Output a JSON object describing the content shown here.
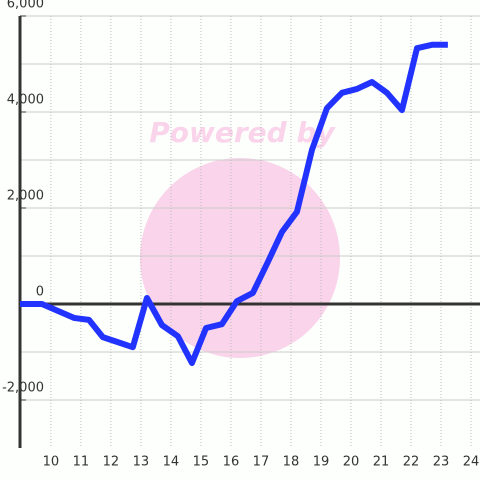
{
  "chart_data": {
    "type": "line",
    "watermark": "Powered by",
    "x": [
      8.97,
      9.7,
      10.77,
      11.27,
      11.73,
      12.73,
      13.2,
      13.7,
      14.23,
      14.7,
      15.17,
      15.7,
      16.2,
      16.73,
      17.23,
      17.7,
      18.2,
      18.7,
      19.2,
      19.7,
      20.2,
      20.7,
      21.2,
      21.7,
      22.2,
      22.7,
      23.23
    ],
    "series": [
      {
        "color": "#2233ff",
        "values": [
          0,
          0,
          -290,
          -330,
          -690,
          -900,
          125,
          -440,
          -670,
          -1230,
          -500,
          -420,
          60,
          230,
          875,
          1500,
          1920,
          3210,
          4080,
          4400,
          4480,
          4625,
          4400,
          4040,
          5330,
          5400,
          5400
        ]
      }
    ],
    "xlim": [
      8.97,
      24.3
    ],
    "ylim": [
      -3000,
      6000
    ],
    "xticks": [
      10,
      11,
      12,
      13,
      14,
      15,
      16,
      17,
      18,
      19,
      20,
      21,
      22,
      23,
      24
    ],
    "yticks": [
      {
        "value": -2000,
        "label": "-2,000"
      },
      0,
      {
        "value": 2000,
        "label": "2,000"
      },
      {
        "value": 4000,
        "label": "4,000"
      },
      {
        "value": 6000,
        "label": "6,000"
      }
    ],
    "ygrid": [
      -2000,
      -1000,
      1000,
      2000,
      3000,
      4000,
      5000,
      6000
    ],
    "grid": true
  }
}
